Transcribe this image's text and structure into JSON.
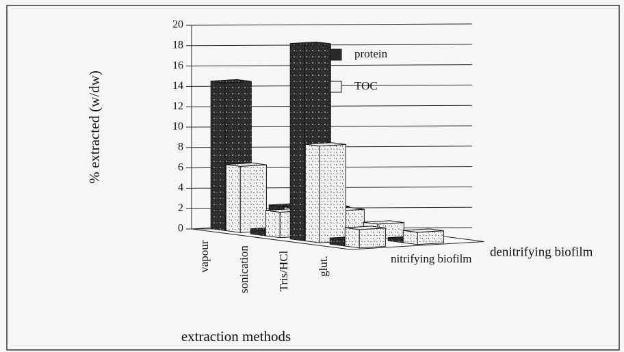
{
  "chart_data": {
    "type": "bar3d",
    "ylabel": "% extracted (w/dw)",
    "xlabel": "extraction methods",
    "categories": [
      "vapour",
      "sonication",
      "Tris/HCl",
      "glut."
    ],
    "depth_categories": [
      "nitrifying biofilm",
      "denitrifying biofilm"
    ],
    "series": [
      {
        "name": "protein",
        "color": "#2b2b2b",
        "values": [
          [
            14.5,
            0.5,
            19.2,
            0.6
          ],
          [
            2,
            2.4,
            0.4,
            0.3
          ]
        ]
      },
      {
        "name": "TOC",
        "color": "#f2f2f2",
        "values": [
          [
            6.5,
            2.5,
            9.5,
            1.8
          ],
          [
            2,
            2.3,
            1.5,
            1.2
          ]
        ]
      }
    ],
    "ylim": [
      0,
      20
    ],
    "yticks": [
      0,
      2,
      4,
      6,
      8,
      10,
      12,
      14,
      16,
      18,
      20
    ],
    "grid": true
  }
}
